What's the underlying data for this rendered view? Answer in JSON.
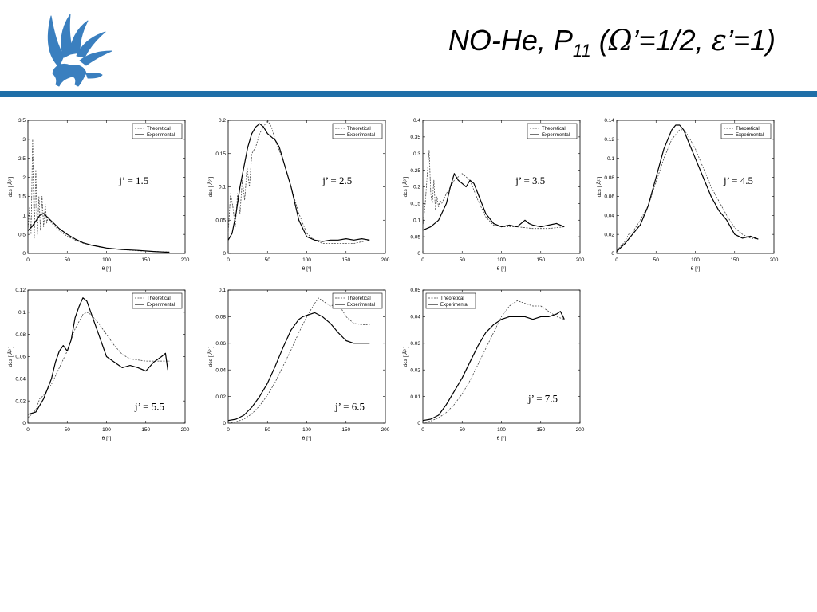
{
  "slide": {
    "title_main": "NO-He, P",
    "title_sub": "11",
    "title_open": " (",
    "omega": "Ω",
    "title_mid": "’=1/2, ",
    "epsilon": "ε",
    "title_end": "’=1)"
  },
  "colors": {
    "accent_rule": "#1f6fa8",
    "logo": "#3a7fbf",
    "theoretical": "#444444",
    "experimental": "#000000"
  },
  "icons": {
    "logo": "griffin-logo"
  },
  "chart_data": [
    {
      "type": "line",
      "panel": "j-1.5",
      "annotation": "j’ = 1.5",
      "xlabel": "θ [°]",
      "ylabel": "dcs [ Å² ]",
      "xlim": [
        0,
        200
      ],
      "ylim": [
        0,
        3.5
      ],
      "xticks": [
        0,
        50,
        100,
        150,
        200
      ],
      "yticks": [
        0,
        0.5,
        1,
        1.5,
        2,
        2.5,
        3,
        3.5
      ],
      "legend": "top-right",
      "series": [
        {
          "name": "Theoretical",
          "style": "dashed",
          "x": [
            0,
            2,
            4,
            6,
            8,
            10,
            12,
            14,
            16,
            18,
            20,
            22,
            24,
            26,
            28,
            30,
            35,
            40,
            50,
            60,
            70,
            80,
            90,
            100,
            120,
            140,
            160,
            180
          ],
          "y": [
            0.6,
            1.2,
            0.5,
            3.0,
            0.4,
            2.2,
            0.5,
            1.5,
            0.6,
            1.5,
            0.7,
            1.3,
            0.8,
            0.95,
            0.85,
            0.8,
            0.7,
            0.6,
            0.45,
            0.35,
            0.27,
            0.22,
            0.17,
            0.14,
            0.1,
            0.07,
            0.05,
            0.04
          ]
        },
        {
          "name": "Experimental",
          "style": "solid",
          "x": [
            0,
            5,
            10,
            15,
            20,
            25,
            30,
            35,
            40,
            50,
            60,
            70,
            80,
            90,
            100,
            120,
            140,
            160,
            180
          ],
          "y": [
            0.6,
            0.7,
            0.85,
            1.0,
            1.05,
            0.95,
            0.85,
            0.75,
            0.65,
            0.5,
            0.38,
            0.28,
            0.22,
            0.18,
            0.14,
            0.1,
            0.08,
            0.05,
            0.03
          ]
        }
      ]
    },
    {
      "type": "line",
      "panel": "j-2.5",
      "annotation": "j’ = 2.5",
      "xlabel": "θ [°]",
      "ylabel": "dcs [ Å² ]",
      "xlim": [
        0,
        200
      ],
      "ylim": [
        0,
        0.2
      ],
      "xticks": [
        0,
        50,
        100,
        150,
        200
      ],
      "yticks": [
        0,
        0.05,
        0.1,
        0.15,
        0.2
      ],
      "legend": "top-right",
      "series": [
        {
          "name": "Theoretical",
          "style": "dashed",
          "x": [
            0,
            3,
            6,
            9,
            12,
            15,
            18,
            21,
            24,
            27,
            30,
            35,
            40,
            45,
            50,
            55,
            60,
            70,
            80,
            90,
            100,
            110,
            120,
            140,
            160,
            180
          ],
          "y": [
            0.03,
            0.09,
            0.07,
            0.04,
            0.09,
            0.06,
            0.11,
            0.08,
            0.13,
            0.1,
            0.15,
            0.16,
            0.18,
            0.19,
            0.2,
            0.19,
            0.17,
            0.14,
            0.1,
            0.06,
            0.03,
            0.02,
            0.015,
            0.015,
            0.015,
            0.02
          ]
        },
        {
          "name": "Experimental",
          "style": "solid",
          "x": [
            0,
            5,
            10,
            15,
            20,
            25,
            30,
            35,
            40,
            45,
            50,
            55,
            60,
            65,
            70,
            80,
            90,
            100,
            110,
            120,
            130,
            140,
            150,
            160,
            170,
            180
          ],
          "y": [
            0.02,
            0.03,
            0.06,
            0.1,
            0.13,
            0.16,
            0.18,
            0.19,
            0.195,
            0.19,
            0.18,
            0.175,
            0.17,
            0.16,
            0.14,
            0.1,
            0.05,
            0.025,
            0.02,
            0.018,
            0.02,
            0.02,
            0.022,
            0.02,
            0.022,
            0.02
          ]
        }
      ]
    },
    {
      "type": "line",
      "panel": "j-3.5",
      "annotation": "j’ = 3.5",
      "xlabel": "θ [°]",
      "ylabel": "dcs [ Å² ]",
      "xlim": [
        0,
        200
      ],
      "ylim": [
        0,
        0.4
      ],
      "xticks": [
        0,
        50,
        100,
        150,
        200
      ],
      "yticks": [
        0,
        0.05,
        0.1,
        0.15,
        0.2,
        0.25,
        0.3,
        0.35,
        0.4
      ],
      "legend": "top-right",
      "series": [
        {
          "name": "Theoretical",
          "style": "dashed",
          "x": [
            0,
            3,
            6,
            8,
            10,
            12,
            14,
            16,
            18,
            20,
            22,
            24,
            26,
            28,
            30,
            35,
            40,
            45,
            50,
            55,
            60,
            65,
            70,
            80,
            90,
            100,
            110,
            120,
            140,
            160,
            180
          ],
          "y": [
            0.08,
            0.15,
            0.25,
            0.31,
            0.18,
            0.15,
            0.22,
            0.13,
            0.17,
            0.14,
            0.16,
            0.15,
            0.16,
            0.17,
            0.18,
            0.2,
            0.22,
            0.23,
            0.24,
            0.23,
            0.22,
            0.19,
            0.16,
            0.11,
            0.085,
            0.08,
            0.08,
            0.08,
            0.075,
            0.075,
            0.08
          ]
        },
        {
          "name": "Experimental",
          "style": "solid",
          "x": [
            0,
            10,
            20,
            30,
            35,
            40,
            45,
            50,
            55,
            60,
            65,
            70,
            80,
            90,
            100,
            110,
            120,
            130,
            135,
            140,
            150,
            160,
            170,
            180
          ],
          "y": [
            0.07,
            0.08,
            0.1,
            0.15,
            0.2,
            0.24,
            0.22,
            0.21,
            0.2,
            0.22,
            0.21,
            0.18,
            0.12,
            0.09,
            0.08,
            0.085,
            0.08,
            0.1,
            0.09,
            0.085,
            0.08,
            0.085,
            0.09,
            0.08
          ]
        }
      ]
    },
    {
      "type": "line",
      "panel": "j-4.5",
      "annotation": "j’ = 4.5",
      "xlabel": "θ [°]",
      "ylabel": "dcs [ Å² ]",
      "xlim": [
        0,
        200
      ],
      "ylim": [
        0,
        0.14
      ],
      "xticks": [
        0,
        50,
        100,
        150,
        200
      ],
      "yticks": [
        0,
        0.02,
        0.04,
        0.06,
        0.08,
        0.1,
        0.12,
        0.14
      ],
      "legend": "top-right",
      "series": [
        {
          "name": "Theoretical",
          "style": "dashed",
          "x": [
            0,
            10,
            15,
            20,
            30,
            40,
            50,
            60,
            70,
            80,
            85,
            90,
            100,
            110,
            120,
            130,
            140,
            150,
            160,
            170,
            180
          ],
          "y": [
            0.003,
            0.012,
            0.02,
            0.022,
            0.035,
            0.05,
            0.075,
            0.1,
            0.12,
            0.13,
            0.13,
            0.125,
            0.11,
            0.09,
            0.07,
            0.055,
            0.04,
            0.027,
            0.02,
            0.016,
            0.015
          ]
        },
        {
          "name": "Experimental",
          "style": "solid",
          "x": [
            0,
            10,
            20,
            30,
            40,
            50,
            60,
            70,
            75,
            80,
            85,
            90,
            100,
            110,
            120,
            130,
            140,
            150,
            160,
            170,
            180
          ],
          "y": [
            0.002,
            0.01,
            0.02,
            0.03,
            0.05,
            0.08,
            0.11,
            0.13,
            0.135,
            0.135,
            0.13,
            0.12,
            0.1,
            0.08,
            0.06,
            0.045,
            0.035,
            0.02,
            0.016,
            0.018,
            0.015
          ]
        }
      ]
    },
    {
      "type": "line",
      "panel": "j-5.5",
      "annotation": "j’ = 5.5",
      "xlabel": "θ [°]",
      "ylabel": "dcs [ Å² ]",
      "xlim": [
        0,
        200
      ],
      "ylim": [
        0,
        0.12
      ],
      "xticks": [
        0,
        50,
        100,
        150,
        200
      ],
      "yticks": [
        0,
        0.02,
        0.04,
        0.06,
        0.08,
        0.1,
        0.12
      ],
      "legend": "top-right",
      "series": [
        {
          "name": "Theoretical",
          "style": "dashed",
          "x": [
            0,
            5,
            10,
            15,
            20,
            30,
            40,
            50,
            60,
            70,
            75,
            80,
            90,
            100,
            110,
            120,
            130,
            140,
            150,
            160,
            170,
            180
          ],
          "y": [
            0.005,
            0.008,
            0.012,
            0.022,
            0.025,
            0.035,
            0.05,
            0.065,
            0.085,
            0.098,
            0.1,
            0.098,
            0.09,
            0.08,
            0.07,
            0.062,
            0.058,
            0.057,
            0.056,
            0.056,
            0.056,
            0.056
          ]
        },
        {
          "name": "Experimental",
          "style": "solid",
          "x": [
            0,
            10,
            20,
            30,
            35,
            40,
            45,
            50,
            55,
            60,
            65,
            70,
            75,
            80,
            90,
            100,
            110,
            120,
            130,
            140,
            150,
            160,
            170,
            175,
            178
          ],
          "y": [
            0.008,
            0.01,
            0.022,
            0.04,
            0.055,
            0.065,
            0.07,
            0.065,
            0.075,
            0.095,
            0.105,
            0.113,
            0.11,
            0.1,
            0.08,
            0.06,
            0.055,
            0.05,
            0.052,
            0.05,
            0.047,
            0.055,
            0.06,
            0.063,
            0.048
          ]
        }
      ]
    },
    {
      "type": "line",
      "panel": "j-6.5",
      "annotation": "j’ = 6.5",
      "xlabel": "θ [°]",
      "ylabel": "dcs [ Å² ]",
      "xlim": [
        0,
        200
      ],
      "ylim": [
        0,
        0.1
      ],
      "xticks": [
        0,
        50,
        100,
        150,
        200
      ],
      "yticks": [
        0,
        0.02,
        0.04,
        0.06,
        0.08,
        0.1
      ],
      "legend": "top-right",
      "series": [
        {
          "name": "Theoretical",
          "style": "dashed",
          "x": [
            0,
            10,
            20,
            30,
            40,
            50,
            60,
            70,
            80,
            90,
            100,
            110,
            115,
            120,
            130,
            140,
            150,
            160,
            170,
            180
          ],
          "y": [
            0.0,
            0.001,
            0.003,
            0.007,
            0.013,
            0.021,
            0.031,
            0.043,
            0.055,
            0.068,
            0.08,
            0.09,
            0.094,
            0.092,
            0.088,
            0.09,
            0.08,
            0.075,
            0.074,
            0.074
          ]
        },
        {
          "name": "Experimental",
          "style": "solid",
          "x": [
            0,
            10,
            20,
            30,
            40,
            50,
            60,
            70,
            80,
            90,
            95,
            100,
            110,
            120,
            130,
            140,
            150,
            160,
            170,
            180
          ],
          "y": [
            0.002,
            0.003,
            0.006,
            0.012,
            0.02,
            0.03,
            0.043,
            0.057,
            0.07,
            0.078,
            0.08,
            0.081,
            0.083,
            0.08,
            0.075,
            0.068,
            0.062,
            0.06,
            0.06,
            0.06
          ]
        }
      ]
    },
    {
      "type": "line",
      "panel": "j-7.5",
      "annotation": "j’ = 7.5",
      "xlabel": "θ [°]",
      "ylabel": "dcs [ Å² ]",
      "xlim": [
        0,
        200
      ],
      "ylim": [
        0,
        0.05
      ],
      "xticks": [
        0,
        50,
        100,
        150,
        200
      ],
      "yticks": [
        0,
        0.01,
        0.02,
        0.03,
        0.04,
        0.05
      ],
      "legend": "top-left",
      "series": [
        {
          "name": "Theoretical",
          "style": "dashed",
          "x": [
            0,
            10,
            20,
            30,
            40,
            50,
            60,
            70,
            80,
            90,
            100,
            110,
            120,
            130,
            140,
            150,
            160,
            170,
            180
          ],
          "y": [
            0.0,
            0.0008,
            0.002,
            0.004,
            0.007,
            0.011,
            0.016,
            0.022,
            0.028,
            0.034,
            0.04,
            0.044,
            0.046,
            0.045,
            0.044,
            0.044,
            0.042,
            0.04,
            0.039
          ]
        },
        {
          "name": "Experimental",
          "style": "solid",
          "x": [
            0,
            10,
            20,
            30,
            40,
            50,
            60,
            70,
            80,
            90,
            100,
            110,
            120,
            130,
            140,
            150,
            160,
            170,
            175,
            180
          ],
          "y": [
            0.001,
            0.0015,
            0.003,
            0.007,
            0.012,
            0.017,
            0.023,
            0.029,
            0.034,
            0.037,
            0.039,
            0.04,
            0.04,
            0.04,
            0.039,
            0.04,
            0.04,
            0.041,
            0.042,
            0.039
          ]
        }
      ]
    }
  ]
}
